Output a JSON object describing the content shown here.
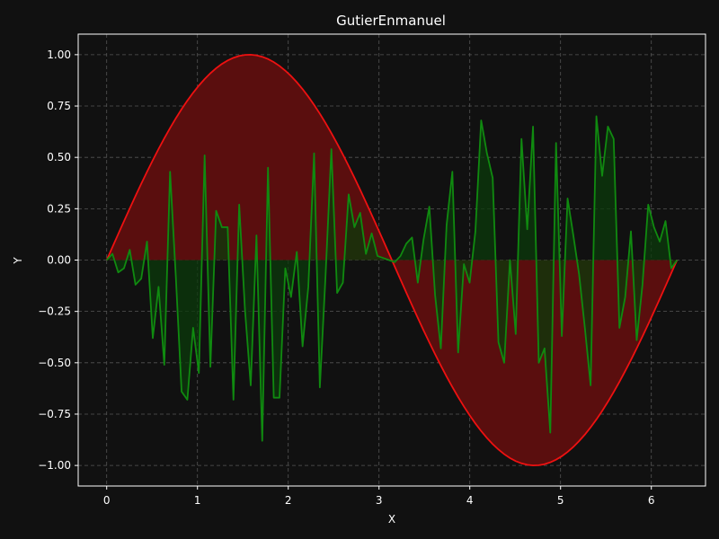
{
  "chart_data": {
    "type": "line",
    "title": "GutierEnmanuel",
    "xlabel": "X",
    "ylabel": "Y",
    "xlim": [
      -0.314,
      6.597
    ],
    "ylim": [
      -1.1,
      1.1
    ],
    "grid": true,
    "x_ticks": [
      0,
      1,
      2,
      3,
      4,
      5,
      6
    ],
    "x_tick_labels": [
      "0",
      "1",
      "2",
      "3",
      "4",
      "5",
      "6"
    ],
    "y_ticks": [
      1.0,
      0.75,
      0.5,
      0.25,
      0.0,
      -0.25,
      -0.5,
      -0.75,
      -1.0
    ],
    "y_tick_labels": [
      "1.00",
      "0.75",
      "0.50",
      "0.25",
      "0.00",
      "−0.25",
      "−0.50",
      "−0.75",
      "−1.00"
    ],
    "colors": {
      "background": "#111111",
      "axes_border": "#ffffff",
      "sine_line": "#ee1111",
      "sine_fill": "#5a0e0e",
      "noise_line": "#108a10",
      "noise_fill": "#0b3a0b",
      "grid": "#555555"
    },
    "series": [
      {
        "function": "sin(x)",
        "x_start": 0,
        "x_end": 6.2832,
        "points": 100
      },
      {
        "x_start": 0,
        "x_end": 6.2832,
        "values": [
          0.0,
          0.03,
          -0.06,
          -0.04,
          0.05,
          -0.12,
          -0.09,
          0.09,
          -0.38,
          -0.13,
          -0.51,
          0.43,
          -0.08,
          -0.64,
          -0.68,
          -0.33,
          -0.55,
          0.51,
          -0.52,
          0.24,
          0.16,
          0.16,
          -0.68,
          0.27,
          -0.24,
          -0.61,
          0.12,
          -0.88,
          0.45,
          -0.67,
          -0.67,
          -0.04,
          -0.18,
          0.04,
          -0.42,
          -0.13,
          0.52,
          -0.62,
          -0.07,
          0.54,
          -0.16,
          -0.11,
          0.32,
          0.16,
          0.23,
          0.03,
          0.13,
          0.02,
          0.01,
          0.0,
          -0.01,
          0.02,
          0.08,
          0.11,
          -0.11,
          0.1,
          0.26,
          -0.17,
          -0.43,
          0.17,
          0.43,
          -0.45,
          -0.02,
          -0.11,
          0.14,
          0.68,
          0.52,
          0.4,
          -0.4,
          -0.5,
          0.0,
          -0.36,
          0.59,
          0.15,
          0.65,
          -0.5,
          -0.43,
          -0.84,
          0.57,
          -0.37,
          0.3,
          0.12,
          -0.07,
          -0.33,
          -0.61,
          0.7,
          0.41,
          0.65,
          0.59,
          -0.33,
          -0.18,
          0.14,
          -0.39,
          -0.12,
          0.27,
          0.16,
          0.09,
          0.19,
          -0.04,
          0.0
        ]
      }
    ]
  }
}
